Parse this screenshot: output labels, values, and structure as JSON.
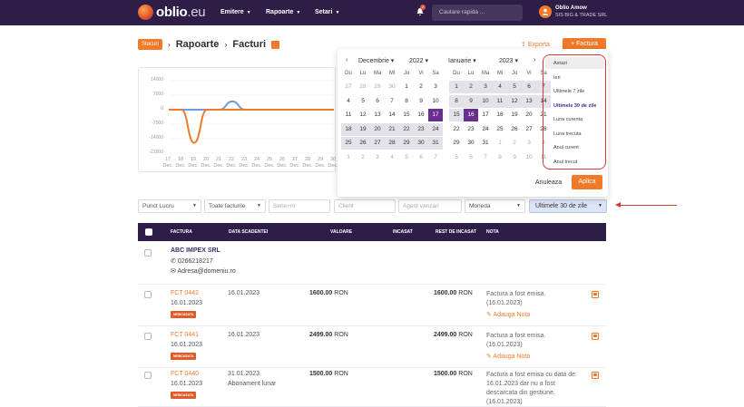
{
  "topbar": {
    "logo_main": "oblio",
    "logo_suffix": ".eu",
    "nav": [
      {
        "label": "Emitere"
      },
      {
        "label": "Rapoarte"
      },
      {
        "label": "Setari"
      }
    ],
    "notification_count": "2",
    "search_placeholder": "Cautare rapida ...",
    "user_name": "Oblio Amow",
    "user_company": "SIS BIG & TRADE SRL"
  },
  "breadcrumb": {
    "pill": "Stocuri",
    "items": [
      "Rapoarte",
      "Facturi"
    ]
  },
  "actions": {
    "export": "Exporta",
    "factura": "Factura"
  },
  "chart_data": {
    "type": "line",
    "y_ticks": [
      "14000",
      "7000",
      "0",
      "-7000",
      "-14000",
      "-21000"
    ],
    "x_categories": [
      "17 Dec",
      "18 Dec",
      "19 Dec",
      "20 Dec",
      "21 Dec",
      "22 Dec",
      "23 Dec",
      "24 Dec",
      "25 Dec",
      "26 Dec",
      "27 Dec",
      "28 Dec",
      "29 Dec",
      "30 Dec"
    ],
    "x_days": [
      "17",
      "18",
      "19",
      "20",
      "21",
      "22",
      "23",
      "24",
      "25",
      "26",
      "27",
      "28",
      "29",
      "30"
    ],
    "x_month": "Dec.",
    "ylim": [
      -21000,
      14000
    ],
    "series": [
      {
        "color": "#6b9ed6",
        "values": [
          0,
          0,
          0,
          0,
          0,
          4000,
          0,
          0,
          0,
          0,
          0,
          0,
          0,
          0
        ]
      },
      {
        "color": "#f07a2a",
        "values": [
          0,
          0,
          -16000,
          0,
          0,
          0,
          0,
          0,
          0,
          0,
          0,
          0,
          0,
          0
        ]
      }
    ]
  },
  "filters": {
    "punct_lucru": "Punct Lucru",
    "toate_facturile": "Toate facturile",
    "serie_nr": "Serie+nr",
    "client": "Client",
    "agent": "Agent vanzari",
    "moneda": "Moneda",
    "period": "Ultimele 30 de zile"
  },
  "calendar": {
    "left": {
      "month": "Decembrie",
      "year": "2022"
    },
    "right": {
      "month": "Ianuarie",
      "year": "2023"
    },
    "weekdays": [
      "Lu",
      "Ma",
      "Mi",
      "Jo",
      "Vi",
      "Sa"
    ],
    "weekday_first": "Du",
    "left_days": [
      [
        "27",
        "28",
        "29",
        "30",
        "1",
        "2",
        "3"
      ],
      [
        "4",
        "5",
        "6",
        "7",
        "8",
        "9",
        "10"
      ],
      [
        "11",
        "12",
        "13",
        "14",
        "15",
        "16",
        "17"
      ],
      [
        "18",
        "19",
        "20",
        "21",
        "22",
        "23",
        "24"
      ],
      [
        "25",
        "26",
        "27",
        "28",
        "29",
        "30",
        "31"
      ],
      [
        "1",
        "2",
        "3",
        "4",
        "5",
        "6",
        "7"
      ]
    ],
    "right_days": [
      [
        "1",
        "2",
        "3",
        "4",
        "5",
        "6",
        "7"
      ],
      [
        "8",
        "9",
        "10",
        "11",
        "12",
        "13",
        "14"
      ],
      [
        "15",
        "16",
        "17",
        "18",
        "19",
        "20",
        "21"
      ],
      [
        "22",
        "23",
        "24",
        "25",
        "26",
        "27",
        "28"
      ],
      [
        "29",
        "30",
        "31",
        "1",
        "2",
        "3",
        "4"
      ],
      [
        "5",
        "6",
        "7",
        "8",
        "9",
        "10",
        "11"
      ]
    ],
    "ranges": [
      "Astazi",
      "Ieri",
      "Ultimele 7 zile",
      "Ultimele 30 de zile",
      "Luna curenta",
      "Luna trecuta",
      "Anul curent",
      "Anul trecut"
    ],
    "cancel": "Anuleaza",
    "apply": "Aplica"
  },
  "table": {
    "headers": [
      "FACTURA",
      "DATA SCADENTEI",
      "VALOARE",
      "INCASAT",
      "REST DE INCASAT",
      "NOTA"
    ],
    "client": {
      "name": "ABC IMPEX SRL",
      "phone": "0266218217",
      "email": "Adresa@domeniu.ro"
    },
    "rows": [
      {
        "number": "FCT 0442",
        "date": "16.01.2023",
        "badge": "NEINCASATA",
        "due": "16.01.2023",
        "due_note": "",
        "value": "1600.00",
        "currency": "RON",
        "rest": "1600.00",
        "note1": "Factura a fost emisa.",
        "note2": "(16.01.2023)",
        "note3": "",
        "note4": "",
        "add_note": "Adauga Nota"
      },
      {
        "number": "FCT 0441",
        "date": "16.01.2023",
        "badge": "NEINCASATA",
        "due": "16.01.2023",
        "due_note": "",
        "value": "2499.00",
        "currency": "RON",
        "rest": "2499.00",
        "note1": "Factura a fost emisa.",
        "note2": "(16.01.2023)",
        "note3": "",
        "note4": "",
        "add_note": "Adauga Nota"
      },
      {
        "number": "FCT 0440",
        "date": "16.01.2023",
        "badge": "NEINCASATA",
        "due": "31.01.2023",
        "due_note": "Abonament lunar",
        "value": "1500.00",
        "currency": "RON",
        "rest": "1500.00",
        "note1": "Factura a fost emisa cu data de:",
        "note2": "16.01.2023 dar nu a fost",
        "note3": "descarcata din gestiune.",
        "note4": "(16.01.2023)",
        "add_note": ""
      }
    ]
  }
}
